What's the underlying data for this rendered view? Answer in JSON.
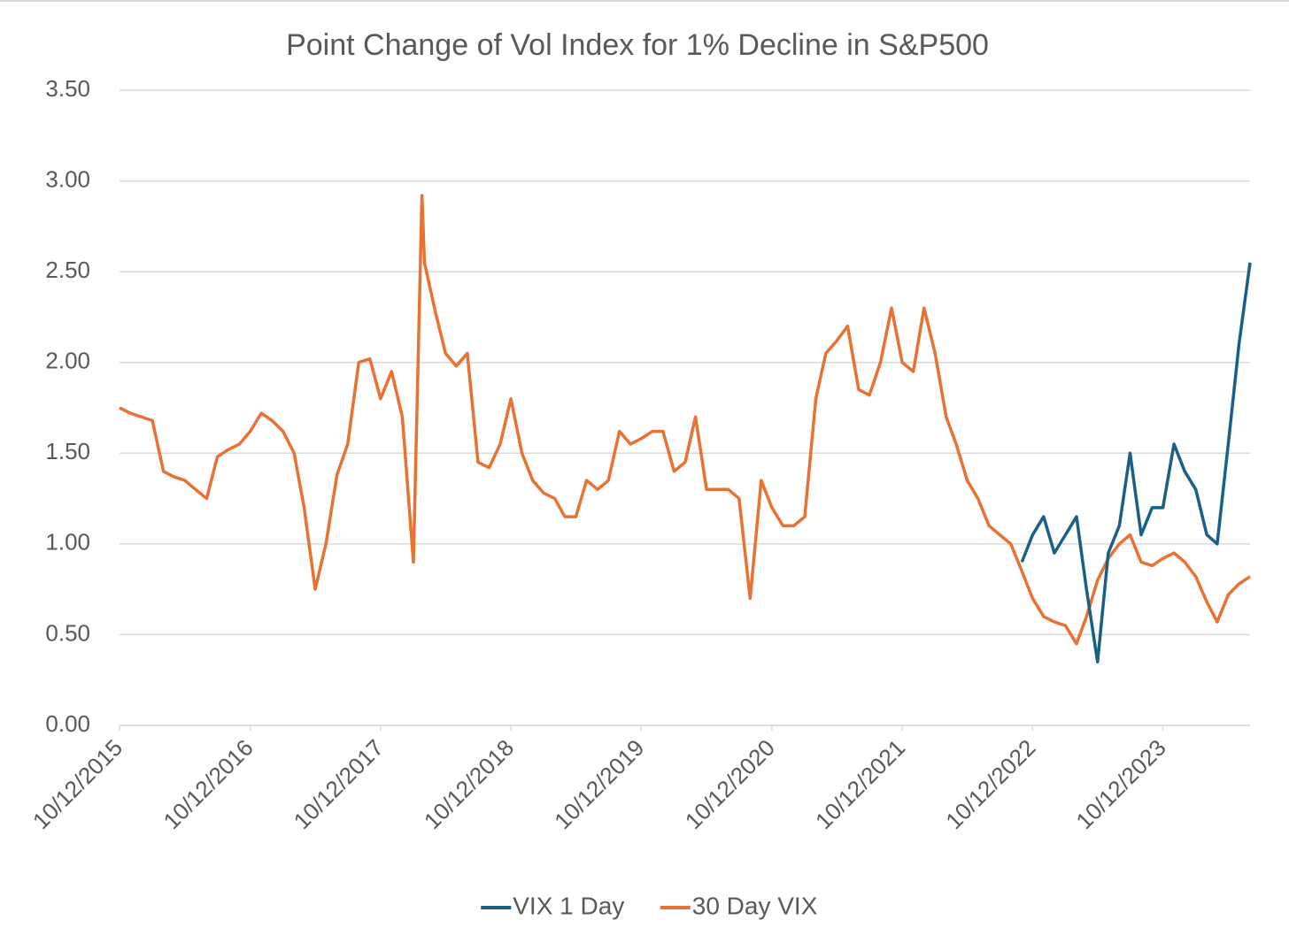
{
  "chart_data": {
    "type": "line",
    "title": "Point Change of Vol Index for 1% Decline in S&P500",
    "x": [
      "2015-10-12",
      "2015-11-12",
      "2015-12-12",
      "2016-01-12",
      "2016-02-12",
      "2016-03-12",
      "2016-04-12",
      "2016-05-12",
      "2016-06-12",
      "2016-07-12",
      "2016-08-12",
      "2016-09-12",
      "2016-10-12",
      "2016-11-12",
      "2016-12-12",
      "2017-01-12",
      "2017-02-12",
      "2017-03-12",
      "2017-04-12",
      "2017-05-12",
      "2017-06-12",
      "2017-07-12",
      "2017-08-12",
      "2017-09-12",
      "2017-10-12",
      "2017-11-12",
      "2017-12-12",
      "2018-01-12",
      "2018-02-05",
      "2018-02-12",
      "2018-03-12",
      "2018-04-12",
      "2018-05-12",
      "2018-06-12",
      "2018-07-12",
      "2018-08-12",
      "2018-09-12",
      "2018-10-12",
      "2018-11-12",
      "2018-12-12",
      "2019-01-12",
      "2019-02-12",
      "2019-03-12",
      "2019-04-12",
      "2019-05-12",
      "2019-06-12",
      "2019-07-12",
      "2019-08-12",
      "2019-09-12",
      "2019-10-12",
      "2019-11-12",
      "2019-12-12",
      "2020-01-12",
      "2020-02-12",
      "2020-03-12",
      "2020-04-12",
      "2020-05-12",
      "2020-06-12",
      "2020-07-12",
      "2020-08-12",
      "2020-09-12",
      "2020-10-12",
      "2020-11-12",
      "2020-12-12",
      "2021-01-12",
      "2021-02-12",
      "2021-03-12",
      "2021-04-12",
      "2021-05-12",
      "2021-06-12",
      "2021-07-12",
      "2021-08-12",
      "2021-09-12",
      "2021-10-12",
      "2021-11-12",
      "2021-12-12",
      "2022-01-12",
      "2022-02-12",
      "2022-03-12",
      "2022-04-12",
      "2022-05-12",
      "2022-06-12",
      "2022-07-12",
      "2022-08-12",
      "2022-09-12",
      "2022-10-12",
      "2022-11-12",
      "2022-12-12",
      "2023-01-12",
      "2023-02-12",
      "2023-03-12",
      "2023-04-12",
      "2023-05-12",
      "2023-06-12",
      "2023-07-12",
      "2023-08-12",
      "2023-09-12",
      "2023-10-12",
      "2023-11-12",
      "2023-12-12",
      "2024-01-12",
      "2024-02-12",
      "2024-03-12",
      "2024-04-12",
      "2024-05-12",
      "2024-06-12"
    ],
    "series": [
      {
        "name": "VIX 1 Day",
        "color": "#1a5f85",
        "values": [
          null,
          null,
          null,
          null,
          null,
          null,
          null,
          null,
          null,
          null,
          null,
          null,
          null,
          null,
          null,
          null,
          null,
          null,
          null,
          null,
          null,
          null,
          null,
          null,
          null,
          null,
          null,
          null,
          null,
          null,
          null,
          null,
          null,
          null,
          null,
          null,
          null,
          null,
          null,
          null,
          null,
          null,
          null,
          null,
          null,
          null,
          null,
          null,
          null,
          null,
          null,
          null,
          null,
          null,
          null,
          null,
          null,
          null,
          null,
          null,
          null,
          null,
          null,
          null,
          null,
          null,
          null,
          null,
          null,
          null,
          null,
          null,
          null,
          null,
          null,
          null,
          null,
          null,
          null,
          null,
          null,
          null,
          null,
          null,
          0.9,
          1.05,
          1.15,
          0.95,
          1.05,
          1.15,
          0.75,
          0.35,
          0.95,
          1.1,
          1.5,
          1.05,
          1.2,
          1.2,
          1.55,
          1.4,
          1.3,
          1.05,
          1.0,
          1.55,
          2.1,
          2.55
        ]
      },
      {
        "name": "30 Day VIX",
        "color": "#e97132",
        "values": [
          1.75,
          1.72,
          1.7,
          1.68,
          1.4,
          1.37,
          1.35,
          1.3,
          1.25,
          1.48,
          1.52,
          1.55,
          1.62,
          1.72,
          1.68,
          1.62,
          1.5,
          1.2,
          0.75,
          1.0,
          1.38,
          1.55,
          2.0,
          2.02,
          1.8,
          1.95,
          1.7,
          0.9,
          2.92,
          2.55,
          2.3,
          2.05,
          1.98,
          2.05,
          1.45,
          1.42,
          1.55,
          1.8,
          1.5,
          1.35,
          1.28,
          1.25,
          1.15,
          1.15,
          1.35,
          1.3,
          1.35,
          1.62,
          1.55,
          1.58,
          1.62,
          1.62,
          1.4,
          1.45,
          1.7,
          1.3,
          1.3,
          1.3,
          1.25,
          0.7,
          1.35,
          1.2,
          1.1,
          1.1,
          1.15,
          1.8,
          2.05,
          2.12,
          2.2,
          1.85,
          1.82,
          2.0,
          2.3,
          2.0,
          1.95,
          2.3,
          2.05,
          1.7,
          1.55,
          1.35,
          1.25,
          1.1,
          1.05,
          1.0,
          0.85,
          0.7,
          0.6,
          0.57,
          0.55,
          0.45,
          0.6,
          0.8,
          0.92,
          1.0,
          1.05,
          0.9,
          0.88,
          0.92,
          0.95,
          0.9,
          0.82,
          0.68,
          0.57,
          0.72,
          0.78,
          0.82
        ]
      }
    ],
    "xlim": [
      "2015-10-12",
      "2024-06-12"
    ],
    "xticks": [
      {
        "value": "2015-10-12",
        "label": "10/12/2015"
      },
      {
        "value": "2016-10-12",
        "label": "10/12/2016"
      },
      {
        "value": "2017-10-12",
        "label": "10/12/2017"
      },
      {
        "value": "2018-10-12",
        "label": "10/12/2018"
      },
      {
        "value": "2019-10-12",
        "label": "10/12/2019"
      },
      {
        "value": "2020-10-12",
        "label": "10/12/2020"
      },
      {
        "value": "2021-10-12",
        "label": "10/12/2021"
      },
      {
        "value": "2022-10-12",
        "label": "10/12/2022"
      },
      {
        "value": "2023-10-12",
        "label": "10/12/2023"
      }
    ],
    "ylim": [
      0,
      3.5
    ],
    "yticks": [
      {
        "value": 0,
        "label": "0.00"
      },
      {
        "value": 0.5,
        "label": "0.50"
      },
      {
        "value": 1,
        "label": "1.00"
      },
      {
        "value": 1.5,
        "label": "1.50"
      },
      {
        "value": 2,
        "label": "2.00"
      },
      {
        "value": 2.5,
        "label": "2.50"
      },
      {
        "value": 3,
        "label": "3.00"
      },
      {
        "value": 3.5,
        "label": "3.50"
      }
    ],
    "grid": true,
    "legend": "bottom"
  }
}
